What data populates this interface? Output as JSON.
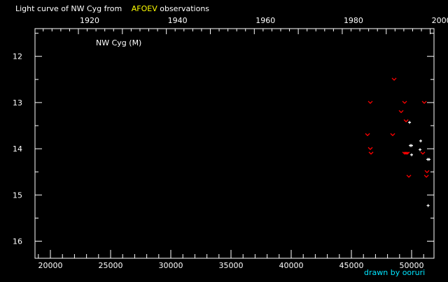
{
  "title": {
    "prefix": "Light curve of NW Cyg from",
    "source": "AFOEV",
    "suffix": "observations"
  },
  "credit": "drawn by ooruri",
  "colors": {
    "background": "#000000",
    "axes": "#ffffff",
    "source": "#ffff00",
    "credit": "#00e5ff",
    "fainter_than": "#ff0000",
    "observation": "#ffffff"
  },
  "chart_data": {
    "type": "scatter",
    "label": "NW Cyg (M)",
    "xlim": [
      18720,
      51860
    ],
    "ylim": [
      11.4,
      16.37
    ],
    "y_inverted": true,
    "x_ticks": [
      20000,
      25000,
      30000,
      35000,
      40000,
      45000,
      50000
    ],
    "x_tick_labels": [
      "20000",
      "25000",
      "30000",
      "35000",
      "40000",
      "45000",
      "50000"
    ],
    "top_axis_years": [
      1920,
      1940,
      1960,
      1980,
      2000
    ],
    "top_axis_labels": [
      "1920",
      "1940",
      "1960",
      "1980",
      "2000"
    ],
    "y_ticks": [
      12,
      13,
      14,
      15,
      16
    ],
    "y_tick_labels": [
      "12",
      "13",
      "14",
      "15",
      "16"
    ],
    "series": [
      {
        "marker": "v",
        "points": [
          [
            48550,
            12.5
          ],
          [
            46570,
            13.0
          ],
          [
            49420,
            13.0
          ],
          [
            51050,
            13.0
          ],
          [
            49130,
            13.2
          ],
          [
            49540,
            13.4
          ],
          [
            46340,
            13.7
          ],
          [
            48430,
            13.7
          ],
          [
            46570,
            14.0
          ],
          [
            46630,
            14.1
          ],
          [
            49420,
            14.1
          ],
          [
            49540,
            14.1
          ],
          [
            49650,
            14.1
          ],
          [
            50930,
            14.1
          ],
          [
            51280,
            14.5
          ],
          [
            51230,
            14.6
          ],
          [
            49770,
            14.6
          ]
        ]
      },
      {
        "marker": "+",
        "points": [
          [
            49830,
            13.43
          ],
          [
            50755,
            13.83
          ],
          [
            49890,
            13.93
          ],
          [
            50000,
            13.93
          ],
          [
            50700,
            14.02
          ],
          [
            50000,
            14.13
          ],
          [
            51340,
            14.23
          ],
          [
            51455,
            14.23
          ],
          [
            51370,
            15.23
          ]
        ]
      }
    ]
  }
}
